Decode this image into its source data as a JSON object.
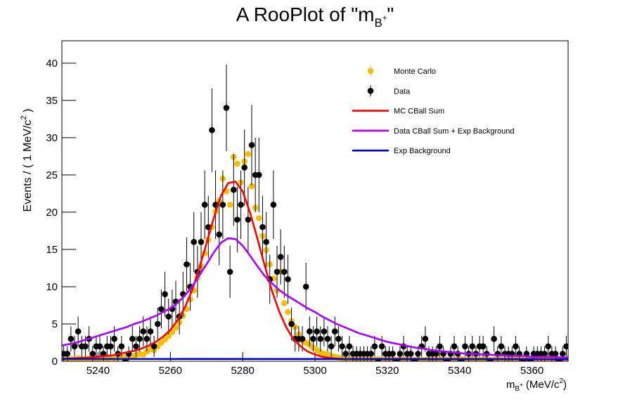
{
  "chart_data": {
    "type": "rooplot",
    "title": [
      "A RooPlot of \"m",
      "B",
      "+",
      "\""
    ],
    "y_label": [
      "Events / ( 1 MeV/c",
      "2",
      " )"
    ],
    "x_label": [
      "m",
      "B",
      "+",
      " (MeV/c",
      "2",
      ")"
    ],
    "xlim": [
      5230,
      5370
    ],
    "xticks": [
      5240,
      5260,
      5280,
      5300,
      5320,
      5340,
      5360
    ],
    "ylim": [
      0,
      43
    ],
    "yticks": [
      0,
      5,
      10,
      15,
      20,
      25,
      30,
      35,
      40
    ],
    "grid": false,
    "legend": "upper right",
    "x": [
      5230.5,
      5231.5,
      5232.5,
      5233.5,
      5234.5,
      5235.5,
      5236.5,
      5237.5,
      5238.5,
      5239.5,
      5240.5,
      5241.5,
      5242.5,
      5243.5,
      5244.5,
      5245.5,
      5246.5,
      5247.5,
      5248.5,
      5249.5,
      5250.5,
      5251.5,
      5252.5,
      5253.5,
      5254.5,
      5255.5,
      5256.5,
      5257.5,
      5258.5,
      5259.5,
      5260.5,
      5261.5,
      5262.5,
      5263.5,
      5264.5,
      5265.5,
      5266.5,
      5267.5,
      5268.5,
      5269.5,
      5270.5,
      5271.5,
      5272.5,
      5273.5,
      5274.5,
      5275.5,
      5276.5,
      5277.5,
      5278.5,
      5279.5,
      5280.5,
      5281.5,
      5282.5,
      5283.5,
      5284.5,
      5285.5,
      5286.5,
      5287.5,
      5288.5,
      5289.5,
      5290.5,
      5291.5,
      5292.5,
      5293.5,
      5294.5,
      5295.5,
      5296.5,
      5297.5,
      5298.5,
      5299.5,
      5300.5,
      5301.5,
      5302.5,
      5303.5,
      5304.5,
      5305.5,
      5306.5,
      5307.5,
      5308.5,
      5309.5,
      5310.5,
      5311.5,
      5312.5,
      5313.5,
      5314.5,
      5315.5,
      5316.5,
      5317.5,
      5318.5,
      5319.5,
      5320.5,
      5321.5,
      5322.5,
      5323.5,
      5324.5,
      5325.5,
      5326.5,
      5327.5,
      5328.5,
      5329.5,
      5330.5,
      5331.5,
      5332.5,
      5333.5,
      5334.5,
      5335.5,
      5336.5,
      5337.5,
      5338.5,
      5339.5,
      5340.5,
      5341.5,
      5342.5,
      5343.5,
      5344.5,
      5345.5,
      5346.5,
      5347.5,
      5348.5,
      5349.5,
      5350.5,
      5351.5,
      5352.5,
      5353.5,
      5354.5,
      5355.5,
      5356.5,
      5357.5,
      5358.5,
      5359.5,
      5360.5,
      5361.5,
      5362.5,
      5363.5,
      5364.5,
      5365.5,
      5366.5,
      5367.5,
      5368.5,
      5369.5
    ],
    "series": [
      {
        "name": "Monte Carlo",
        "kind": "points",
        "color": "#f5bf00",
        "values": [
          0.2,
          0.3,
          0.3,
          0.2,
          0.4,
          0.3,
          0.3,
          0.4,
          0.3,
          0.4,
          0.4,
          0.5,
          0.3,
          0.5,
          0.4,
          0.5,
          0.6,
          0.5,
          0.7,
          0.6,
          0.8,
          1.0,
          0.9,
          1.3,
          1.6,
          1.5,
          2.0,
          2.5,
          2.9,
          3.4,
          3.9,
          4.5,
          5.2,
          6.1,
          7.0,
          8.3,
          9.5,
          11.2,
          12.8,
          14.5,
          16.3,
          18.0,
          20.1,
          21.5,
          24.5,
          22.8,
          21.0,
          27.4,
          26.5,
          24.0,
          26.8,
          27.8,
          23.5,
          20.6,
          19.2,
          16.8,
          14.9,
          13.0,
          11.1,
          9.5,
          12.0,
          7.8,
          6.6,
          5.4,
          4.6,
          3.6,
          2.8,
          2.5,
          2.2,
          1.8,
          1.5,
          1.2,
          1.0,
          0.9,
          0.7,
          0.6,
          0.5,
          0.4,
          0.4,
          0.3,
          0.3,
          0.2,
          0.3,
          0.2,
          0.3,
          0.2,
          0.2,
          0.3,
          0.2,
          0.2,
          0.3,
          0.2,
          0.2,
          0.3,
          0.2,
          0.3,
          0.2,
          0.2,
          0.3,
          0.2,
          0.2,
          0.3,
          0.2,
          0.2,
          0.3,
          0.2,
          0.2,
          0.3,
          0.2,
          0.2,
          0.3,
          0.2,
          0.2,
          0.3,
          0.2,
          0.2,
          0.3,
          0.2,
          0.2,
          0.2,
          0.3,
          0.2,
          0.2,
          0.3,
          0.2,
          0.2,
          0.3,
          0.2,
          0.2,
          0.2,
          0.3,
          0.2,
          0.2,
          0.3,
          0.2,
          0.2,
          0.3,
          0.2,
          0.2,
          0.2
        ]
      },
      {
        "name": "Data",
        "kind": "points",
        "color": "#000000",
        "values": [
          1,
          1,
          3,
          2,
          4,
          2,
          2,
          3,
          1,
          2,
          2,
          1,
          2,
          2,
          3,
          1,
          2,
          0,
          1,
          3,
          2,
          3,
          4,
          3,
          4,
          2,
          5,
          7,
          9,
          6,
          7,
          8,
          6,
          9,
          13,
          10,
          16,
          12,
          16,
          21,
          18,
          31,
          21,
          17,
          21,
          34,
          12,
          23,
          19,
          21,
          26,
          19,
          29,
          25,
          25,
          18,
          16,
          11,
          21,
          12,
          14,
          12,
          11,
          5,
          3,
          3,
          3,
          10,
          4,
          3,
          4,
          3,
          4,
          3,
          2,
          4,
          3,
          2,
          1,
          2,
          1,
          1,
          1,
          1,
          1,
          1,
          2,
          0,
          2,
          1,
          1,
          1,
          0,
          1,
          2,
          1,
          1,
          0,
          1,
          2,
          3,
          1,
          1,
          1,
          2,
          1,
          0,
          1,
          2,
          1,
          0,
          2,
          1,
          2,
          1,
          2,
          2,
          1,
          0,
          3,
          1,
          2,
          1,
          1,
          1,
          2,
          1,
          0,
          1,
          0,
          1,
          1,
          1,
          1,
          2,
          1,
          1,
          0,
          1,
          2
        ],
        "errors": [
          1,
          1,
          1.7,
          1.4,
          2,
          1.4,
          1.4,
          1.7,
          1,
          1.4,
          1.4,
          1,
          1.4,
          1.4,
          1.7,
          1,
          1.4,
          0,
          1,
          1.7,
          1.4,
          1.7,
          2,
          1.7,
          2,
          1.4,
          2.2,
          2.6,
          3,
          2.4,
          2.6,
          2.8,
          2.4,
          3,
          3.6,
          3.2,
          4,
          3.5,
          4,
          4.6,
          4.2,
          5.6,
          4.6,
          4.1,
          4.6,
          5.8,
          3.5,
          4.8,
          4.4,
          4.6,
          5.1,
          4.4,
          5.4,
          5,
          5,
          4.2,
          4,
          3.3,
          4.6,
          3.5,
          3.7,
          3.5,
          3.3,
          2.2,
          1.7,
          1.7,
          1.7,
          3.2,
          2,
          1.7,
          2,
          1.7,
          2,
          1.7,
          1.4,
          2,
          1.7,
          1.4,
          1,
          1.4,
          1,
          1,
          1,
          1,
          1,
          1,
          1.4,
          0,
          1.4,
          1,
          1,
          1,
          0,
          1,
          1.4,
          1,
          1,
          0,
          1,
          1.4,
          1.7,
          1,
          1,
          1,
          1.4,
          1,
          0,
          1,
          1.4,
          1,
          0,
          1.4,
          1,
          1.4,
          1,
          1.4,
          1.4,
          1,
          0,
          1.7,
          1,
          1.4,
          1,
          1,
          1,
          1.4,
          1,
          0,
          1,
          0,
          1,
          1,
          1,
          1,
          1.4,
          1,
          1,
          0,
          1,
          1.4
        ]
      },
      {
        "name": "MC CBall Sum",
        "kind": "line",
        "color": "#ff0000",
        "x": [
          5230,
          5232,
          5234,
          5236,
          5238,
          5240,
          5242,
          5244,
          5246,
          5248,
          5250,
          5252,
          5254,
          5256,
          5258,
          5260,
          5262,
          5264,
          5266,
          5268,
          5270,
          5272,
          5274,
          5276,
          5278,
          5280,
          5282,
          5284,
          5286,
          5288,
          5290,
          5292,
          5294,
          5296,
          5298,
          5300,
          5302,
          5304,
          5306,
          5308,
          5310,
          5312,
          5314,
          5316,
          5318,
          5320,
          5322,
          5324,
          5326,
          5328,
          5330,
          5332,
          5334,
          5336,
          5338,
          5340,
          5342,
          5344,
          5346,
          5348,
          5350,
          5352,
          5354,
          5356,
          5358,
          5360,
          5362,
          5364,
          5366,
          5368,
          5370
        ],
        "values": [
          0.3,
          0.35,
          0.4,
          0.45,
          0.5,
          0.6,
          0.7,
          0.8,
          1.0,
          1.2,
          1.4,
          1.7,
          2.1,
          2.6,
          3.3,
          4.2,
          5.5,
          7.2,
          9.5,
          12.5,
          15.8,
          19.2,
          22.2,
          23.9,
          24.1,
          22.8,
          20.0,
          16.6,
          13.0,
          9.6,
          6.8,
          4.6,
          3.0,
          2.0,
          1.3,
          0.9,
          0.6,
          0.45,
          0.35,
          0.3,
          0.3,
          0.3,
          0.3,
          0.3,
          0.3,
          0.3,
          0.3,
          0.3,
          0.3,
          0.3,
          0.3,
          0.3,
          0.3,
          0.3,
          0.3,
          0.3,
          0.3,
          0.3,
          0.3,
          0.3,
          0.3,
          0.3,
          0.3,
          0.3,
          0.3,
          0.3,
          0.3,
          0.3,
          0.3,
          0.3,
          0.3
        ]
      },
      {
        "name": "Data CBall Sum + Exp Background",
        "kind": "line",
        "color": "#aa00ff",
        "x": [
          5230,
          5232,
          5234,
          5236,
          5238,
          5240,
          5242,
          5244,
          5246,
          5248,
          5250,
          5252,
          5254,
          5256,
          5258,
          5260,
          5262,
          5264,
          5266,
          5268,
          5270,
          5272,
          5274,
          5276,
          5278,
          5280,
          5282,
          5284,
          5286,
          5288,
          5290,
          5292,
          5294,
          5296,
          5298,
          5300,
          5302,
          5304,
          5306,
          5308,
          5310,
          5312,
          5314,
          5316,
          5318,
          5320,
          5322,
          5324,
          5326,
          5328,
          5330,
          5332,
          5334,
          5336,
          5338,
          5340,
          5342,
          5344,
          5346,
          5348,
          5350,
          5352,
          5354,
          5356,
          5358,
          5360,
          5362,
          5364,
          5366,
          5368,
          5370
        ],
        "values": [
          2.1,
          2.3,
          2.5,
          2.8,
          3.1,
          3.4,
          3.7,
          4.0,
          4.3,
          4.6,
          5.0,
          5.3,
          5.7,
          6.1,
          6.6,
          7.1,
          7.8,
          8.8,
          10.0,
          11.5,
          13.0,
          14.6,
          15.9,
          16.5,
          16.4,
          15.5,
          14.2,
          12.8,
          11.5,
          10.5,
          9.6,
          8.9,
          8.3,
          7.7,
          7.1,
          6.6,
          6.0,
          5.5,
          5.0,
          4.6,
          4.2,
          3.8,
          3.5,
          3.2,
          2.9,
          2.6,
          2.4,
          2.2,
          2.0,
          1.8,
          1.7,
          1.5,
          1.4,
          1.3,
          1.2,
          1.1,
          1.0,
          1.0,
          0.9,
          0.9,
          0.8,
          0.8,
          0.7,
          0.7,
          0.7,
          0.6,
          0.6,
          0.6,
          0.6,
          0.5,
          0.5
        ]
      },
      {
        "name": "Exp Background",
        "kind": "line",
        "color": "#0000cc",
        "x": [
          5230,
          5370
        ],
        "values": [
          0.32,
          0.28
        ]
      }
    ]
  }
}
